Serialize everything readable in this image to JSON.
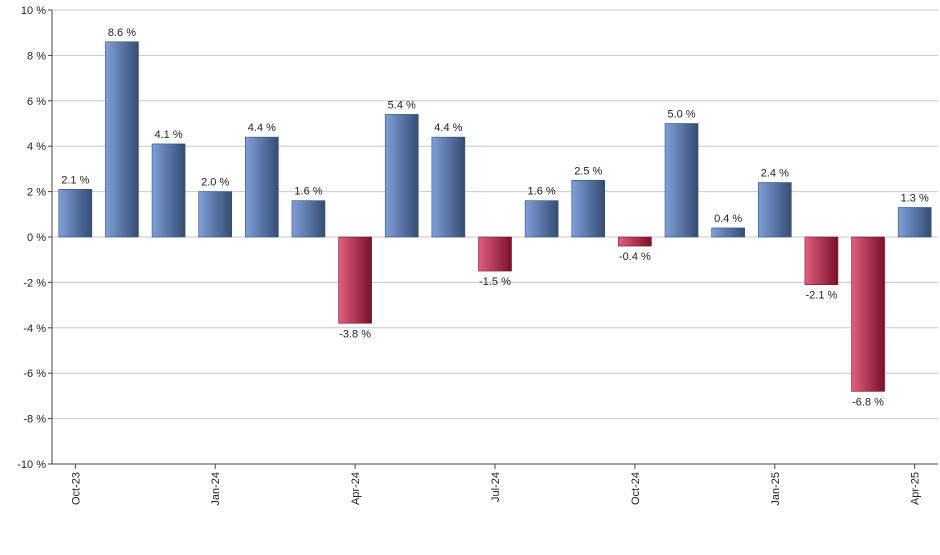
{
  "chart_data": {
    "type": "bar",
    "title": "",
    "xlabel": "",
    "ylabel": "",
    "categories": [
      "Oct-23",
      "Nov-23",
      "Dec-23",
      "Jan-24",
      "Feb-24",
      "Mar-24",
      "Apr-24",
      "May-24",
      "Jun-24",
      "Jul-24",
      "Aug-24",
      "Sep-24",
      "Oct-24",
      "Nov-24",
      "Dec-24",
      "Jan-25",
      "Feb-25",
      "Mar-25",
      "Apr-25"
    ],
    "values": [
      2.1,
      8.6,
      4.1,
      2.0,
      4.4,
      1.6,
      -3.8,
      5.4,
      4.4,
      -1.5,
      1.6,
      2.5,
      -0.4,
      5.0,
      0.4,
      2.4,
      -2.1,
      -6.8,
      1.3
    ],
    "data_labels": [
      "2.1 %",
      "8.6 %",
      "4.1 %",
      "2.0 %",
      "4.4 %",
      "1.6 %",
      "-3.8 %",
      "5.4 %",
      "4.4 %",
      "-1.5 %",
      "1.6 %",
      "2.5 %",
      "-0.4 %",
      "5.0 %",
      "0.4 %",
      "2.4 %",
      "-2.1 %",
      "-6.8 %",
      "1.3 %"
    ],
    "x_tick_labels": [
      {
        "index": 0,
        "label": "Oct-23"
      },
      {
        "index": 3,
        "label": "Jan-24"
      },
      {
        "index": 6,
        "label": "Apr-24"
      },
      {
        "index": 9,
        "label": "Jul-24"
      },
      {
        "index": 12,
        "label": "Oct-24"
      },
      {
        "index": 15,
        "label": "Jan-25"
      },
      {
        "index": 18,
        "label": "Apr-25"
      }
    ],
    "y_ticks": [
      10,
      8,
      6,
      4,
      2,
      0,
      -2,
      -4,
      -6,
      -8,
      -10
    ],
    "y_tick_labels": [
      "10 %",
      "8 %",
      "6 %",
      "4 %",
      "2 %",
      "0 %",
      "-2 %",
      "-4 %",
      "-6 %",
      "-8 %",
      "-10 %"
    ],
    "ylim": [
      -10,
      10
    ],
    "grid": true,
    "legend": "none",
    "colors": {
      "positive": "#7f9fd9",
      "positive_dark": "#344d73",
      "negative": "#e0607e",
      "negative_dark": "#7a1028",
      "grid": "#c8c8c8",
      "axis": "#444444"
    }
  }
}
